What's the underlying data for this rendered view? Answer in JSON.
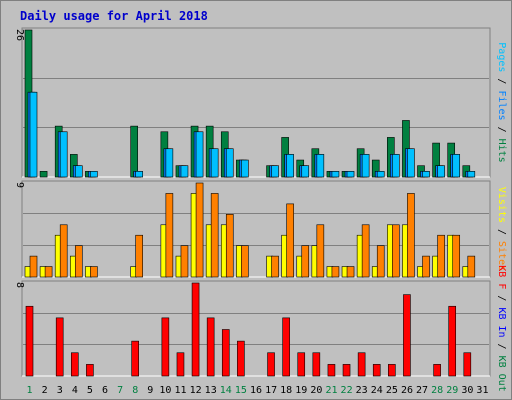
{
  "colors": {
    "background": "#c0c0c0",
    "hits": "#008040",
    "files": "#00c0ff",
    "pages": "#00c0ff",
    "visits": "#ffff00",
    "sites": "#ff8000",
    "kb": "#ff0000",
    "weekend_tick": "#008040",
    "weekday_tick": "#000000",
    "title": "#0000cc"
  },
  "chart_data": {
    "type": "bar",
    "title": "Daily usage for April 2018",
    "categories": [
      "1",
      "2",
      "3",
      "4",
      "5",
      "6",
      "7",
      "8",
      "9",
      "10",
      "11",
      "12",
      "13",
      "14",
      "15",
      "16",
      "17",
      "18",
      "19",
      "20",
      "21",
      "22",
      "23",
      "24",
      "25",
      "26",
      "27",
      "28",
      "29",
      "30",
      "31"
    ],
    "weekend_days": [
      1,
      7,
      8,
      14,
      15,
      21,
      22,
      28,
      29
    ],
    "panels": [
      {
        "id": "usage",
        "ymax_label": "26",
        "ylim": [
          0,
          26
        ],
        "right_label": [
          {
            "text": "Pages",
            "color": "#00c0ff"
          },
          {
            "text": " / ",
            "color": "#000000"
          },
          {
            "text": "Files",
            "color": "#0080ff"
          },
          {
            "text": " / ",
            "color": "#000000"
          },
          {
            "text": "Hits",
            "color": "#008040"
          }
        ],
        "series": [
          {
            "name": "Hits",
            "color": "#008040",
            "values": [
              26,
              1,
              9,
              4,
              1,
              0,
              0,
              9,
              0,
              8,
              2,
              9,
              9,
              8,
              3,
              0,
              2,
              7,
              3,
              5,
              1,
              1,
              5,
              3,
              7,
              10,
              2,
              6,
              6,
              2,
              0
            ]
          },
          {
            "name": "Files",
            "color": "#0080ff",
            "values": [
              15,
              0,
              8,
              2,
              1,
              0,
              0,
              1,
              0,
              5,
              2,
              8,
              5,
              5,
              3,
              0,
              2,
              4,
              2,
              4,
              1,
              1,
              4,
              1,
              4,
              5,
              1,
              2,
              4,
              1,
              0
            ]
          },
          {
            "name": "Pages",
            "color": "#00c0ff",
            "values": [
              15,
              0,
              8,
              2,
              1,
              0,
              0,
              1,
              0,
              5,
              2,
              8,
              5,
              5,
              3,
              0,
              2,
              4,
              2,
              4,
              1,
              1,
              4,
              1,
              4,
              5,
              1,
              2,
              4,
              1,
              0
            ]
          }
        ]
      },
      {
        "id": "visitors",
        "ymax_label": "9",
        "ylim": [
          0,
          9
        ],
        "right_label": [
          {
            "text": "Visits",
            "color": "#ffff00"
          },
          {
            "text": " / ",
            "color": "#000000"
          },
          {
            "text": "Sites",
            "color": "#ff8000"
          }
        ],
        "series": [
          {
            "name": "Visits",
            "color": "#ffff00",
            "values": [
              1,
              1,
              4,
              2,
              1,
              0,
              0,
              1,
              0,
              5,
              2,
              8,
              5,
              5,
              3,
              0,
              2,
              4,
              2,
              3,
              1,
              1,
              4,
              1,
              5,
              5,
              1,
              2,
              4,
              1,
              0
            ]
          },
          {
            "name": "Sites",
            "color": "#ff8000",
            "values": [
              2,
              1,
              5,
              3,
              1,
              0,
              0,
              4,
              0,
              8,
              3,
              9,
              8,
              6,
              3,
              0,
              2,
              7,
              3,
              5,
              1,
              1,
              5,
              3,
              5,
              8,
              2,
              4,
              4,
              2,
              0
            ]
          }
        ]
      },
      {
        "id": "traffic",
        "ymax_label": "8",
        "ylim": [
          0,
          8
        ],
        "right_label": [
          {
            "text": "KB F",
            "color": "#ff0000"
          },
          {
            "text": " / ",
            "color": "#000000"
          },
          {
            "text": "KB In",
            "color": "#0000ff"
          },
          {
            "text": " / ",
            "color": "#000000"
          },
          {
            "text": "KB Out",
            "color": "#008040"
          }
        ],
        "series": [
          {
            "name": "KB F",
            "color": "#ff0000",
            "values": [
              6,
              0,
              5,
              2,
              1,
              0,
              0,
              3,
              0,
              5,
              2,
              8,
              5,
              4,
              3,
              0,
              2,
              5,
              2,
              2,
              1,
              1,
              2,
              1,
              1,
              7,
              0,
              1,
              6,
              2,
              0
            ]
          }
        ]
      }
    ]
  }
}
